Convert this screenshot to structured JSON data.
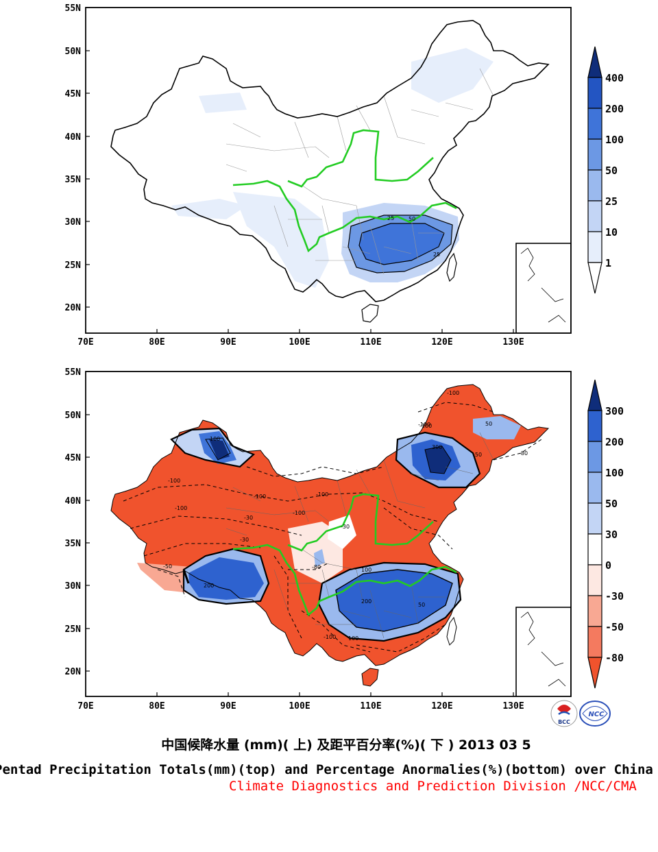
{
  "captions": {
    "chinese": "中国候降水量 (mm)( 上) 及距平百分率(%)( 下 ) 2013 03 5",
    "english": "Pentad Precipitation Totals(mm)(top) and Percentage Anormalies(%)(bottom) over China",
    "division": "Climate Diagnostics and Prediction Division /NCC/CMA"
  },
  "logos": {
    "left": "BCC",
    "right": "NCC"
  },
  "axes": {
    "lon_ticks": [
      "70E",
      "80E",
      "90E",
      "100E",
      "110E",
      "120E",
      "130E"
    ],
    "lat_ticks": [
      "55N",
      "50N",
      "45N",
      "40N",
      "35N",
      "30N",
      "25N",
      "20N"
    ]
  },
  "top_map": {
    "colorbar": {
      "labels": [
        "400",
        "200",
        "100",
        "50",
        "25",
        "10",
        "1"
      ],
      "colors": [
        "#ffffff",
        "#e6eefb",
        "#c3d5f5",
        "#9ab9ee",
        "#6c98e4",
        "#3f74d9",
        "#2355c2",
        "#0f2d7a"
      ]
    },
    "contour_labels": [
      "25",
      "50",
      "25"
    ]
  },
  "bottom_map": {
    "colorbar": {
      "labels": [
        "300",
        "200",
        "100",
        "50",
        "30",
        "0",
        "-30",
        "-50",
        "-80"
      ],
      "colors": [
        "#f0532d",
        "#f47a5f",
        "#f8a893",
        "#fde8e2",
        "#ffffff",
        "#c3d5f5",
        "#9ab9ee",
        "#6c98e4",
        "#2e62cf",
        "#0f2d7a"
      ]
    },
    "contour_labels": [
      "-100",
      "-100",
      "-100",
      "-100",
      "-100",
      "-100",
      "-50",
      "-80",
      "-30",
      "-30",
      "100",
      "300",
      "200",
      "100",
      "200",
      "100",
      "50",
      "-50",
      "-100",
      "-100",
      "-100",
      "50",
      "-30",
      "-80"
    ]
  }
}
